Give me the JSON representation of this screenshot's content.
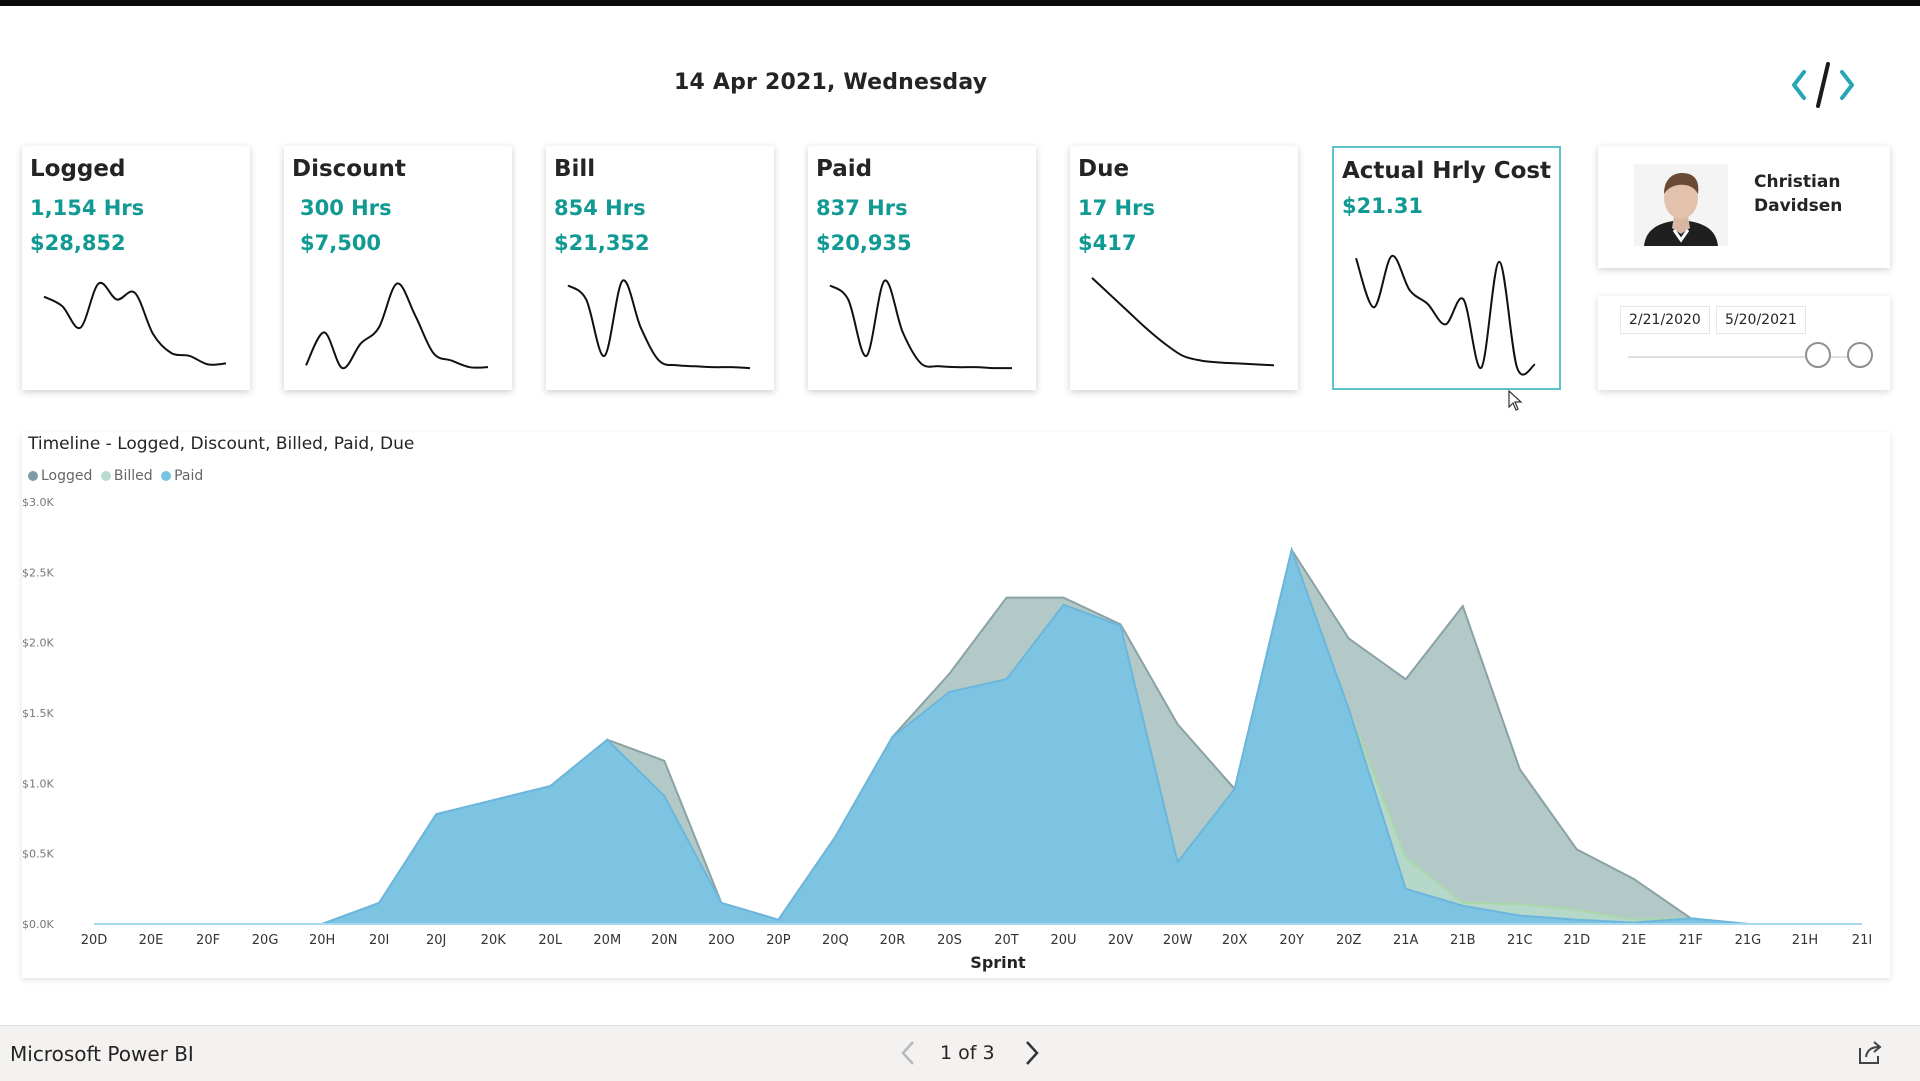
{
  "header": {
    "date": "14 Apr 2021, Wednesday",
    "code_icon": "code-brackets-icon"
  },
  "cards": [
    {
      "id": "logged",
      "title": "Logged",
      "value1": "1,154 Hrs",
      "value2": "$28,852",
      "spark": [
        0.22,
        0.32,
        0.55,
        0.08,
        0.25,
        0.18,
        0.62,
        0.82,
        0.85,
        0.94,
        0.93
      ]
    },
    {
      "id": "discount",
      "title": "Discount",
      "value1": "300 Hrs",
      "value2": "$7,500",
      "spark": [
        0.95,
        0.6,
        0.98,
        0.72,
        0.55,
        0.08,
        0.42,
        0.82,
        0.9,
        0.97,
        0.97
      ]
    },
    {
      "id": "bill",
      "title": "Bill",
      "value1": "854 Hrs",
      "value2": "$21,352",
      "spark": [
        0.1,
        0.25,
        0.85,
        0.05,
        0.55,
        0.9,
        0.95,
        0.96,
        0.97,
        0.97,
        0.98
      ]
    },
    {
      "id": "paid",
      "title": "Paid",
      "value1": "837 Hrs",
      "value2": "$20,935",
      "spark": [
        0.1,
        0.25,
        0.85,
        0.05,
        0.6,
        0.93,
        0.96,
        0.97,
        0.97,
        0.98,
        0.98
      ]
    },
    {
      "id": "due",
      "title": "Due",
      "value1": "17 Hrs",
      "value2": "$417",
      "spark": [
        0.02,
        0.2,
        0.38,
        0.56,
        0.72,
        0.85,
        0.9,
        0.92,
        0.93,
        0.94,
        0.95
      ]
    },
    {
      "id": "hrly",
      "title": "Actual Hrly Cost",
      "value1": "$21.31",
      "value2": "",
      "spark": [
        0.02,
        0.45,
        0.0,
        0.3,
        0.42,
        0.6,
        0.38,
        0.98,
        0.05,
        0.98,
        0.95
      ]
    }
  ],
  "profile": {
    "name": "Christian Davidsen"
  },
  "date_slicer": {
    "start": "2/21/2020",
    "end": "5/20/2021",
    "start_pos": 0.82,
    "end_pos": 1.0
  },
  "timeline": {
    "title": "Timeline - Logged, Discount, Billed, Paid, Due",
    "legend": [
      {
        "name": "Logged",
        "color": "#7f9aa6"
      },
      {
        "name": "Billed",
        "color": "#b8dad0"
      },
      {
        "name": "Paid",
        "color": "#79c3e3"
      }
    ]
  },
  "chart_data": {
    "type": "area",
    "title": "Timeline - Logged, Discount, Billed, Paid, Due",
    "xlabel": "Sprint",
    "ylabel": "",
    "ylim": [
      0,
      3000
    ],
    "yticks": [
      "$0.0K",
      "$0.5K",
      "$1.0K",
      "$1.5K",
      "$2.0K",
      "$2.5K",
      "$3.0K"
    ],
    "categories": [
      "20D",
      "20E",
      "20F",
      "20G",
      "20H",
      "20I",
      "20J",
      "20K",
      "20L",
      "20M",
      "20N",
      "20O",
      "20P",
      "20Q",
      "20R",
      "20S",
      "20T",
      "20U",
      "20V",
      "20W",
      "20X",
      "20Y",
      "20Z",
      "21A",
      "21B",
      "21C",
      "21D",
      "21E",
      "21F",
      "21G",
      "21H",
      "21I"
    ],
    "series": [
      {
        "name": "Logged",
        "color": "#9ab7b5",
        "values": [
          0,
          0,
          0,
          0,
          0,
          150,
          780,
          880,
          980,
          1310,
          1160,
          150,
          30,
          620,
          1330,
          1780,
          2320,
          2320,
          2130,
          1420,
          960,
          2660,
          2030,
          1740,
          2260,
          1100,
          530,
          320,
          40,
          0,
          0,
          0
        ]
      },
      {
        "name": "Billed",
        "color": "#b6dccb",
        "values": [
          0,
          0,
          0,
          0,
          0,
          150,
          780,
          880,
          980,
          1310,
          910,
          150,
          30,
          620,
          1330,
          1650,
          1740,
          2270,
          2120,
          440,
          960,
          2660,
          1530,
          470,
          150,
          140,
          100,
          30,
          40,
          0,
          0,
          0
        ]
      },
      {
        "name": "Paid",
        "color": "#79c3e3",
        "values": [
          0,
          0,
          0,
          0,
          0,
          150,
          780,
          880,
          980,
          1310,
          910,
          150,
          30,
          620,
          1330,
          1650,
          1740,
          2270,
          2120,
          440,
          960,
          2660,
          1530,
          250,
          130,
          60,
          30,
          10,
          40,
          0,
          0,
          0
        ]
      }
    ],
    "legend_position": "top-left",
    "grid": false
  },
  "footer": {
    "brand": "Microsoft Power BI",
    "page": "1 of 3"
  }
}
